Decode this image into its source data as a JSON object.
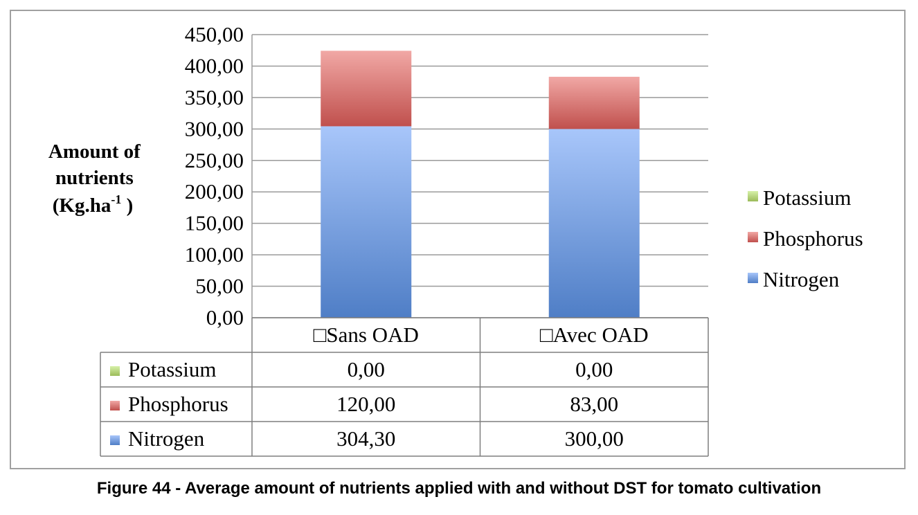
{
  "caption": "Figure 44 - Average amount of nutrients applied with and without DST for tomato cultivation",
  "chart_data": {
    "type": "bar",
    "stacked": true,
    "categories": [
      "□Sans OAD",
      "□Avec OAD"
    ],
    "series": [
      {
        "name": "Nitrogen",
        "values": [
          304.3,
          300.0
        ],
        "value_labels": [
          "304,30",
          "300,00"
        ],
        "color_top": "#a8c6fa",
        "color_bottom": "#4f7ec6"
      },
      {
        "name": "Phosphorus",
        "values": [
          120.0,
          83.0
        ],
        "value_labels": [
          "120,00",
          "83,00"
        ],
        "color_top": "#f1a8a5",
        "color_bottom": "#c0504d"
      },
      {
        "name": "Potassium",
        "values": [
          0.0,
          0.0
        ],
        "value_labels": [
          "0,00",
          "0,00"
        ],
        "color_top": "#d7f1a9",
        "color_bottom": "#9bbb59"
      }
    ],
    "ylabel_lines": [
      "Amount of",
      "nutrients"
    ],
    "ylabel_unit_prefix": "(Kg.ha",
    "ylabel_unit_sup": "-1",
    "ylabel_unit_suffix": " )",
    "ylim": [
      0,
      450
    ],
    "yticks": [
      0,
      50,
      100,
      150,
      200,
      250,
      300,
      350,
      400,
      450
    ],
    "ytick_labels": [
      "0,00",
      "50,00",
      "100,00",
      "150,00",
      "200,00",
      "250,00",
      "300,00",
      "350,00",
      "400,00",
      "450,00"
    ],
    "grid": true,
    "legend_position": "right",
    "legend_order": [
      "Potassium",
      "Phosphorus",
      "Nitrogen"
    ],
    "data_table": true
  }
}
